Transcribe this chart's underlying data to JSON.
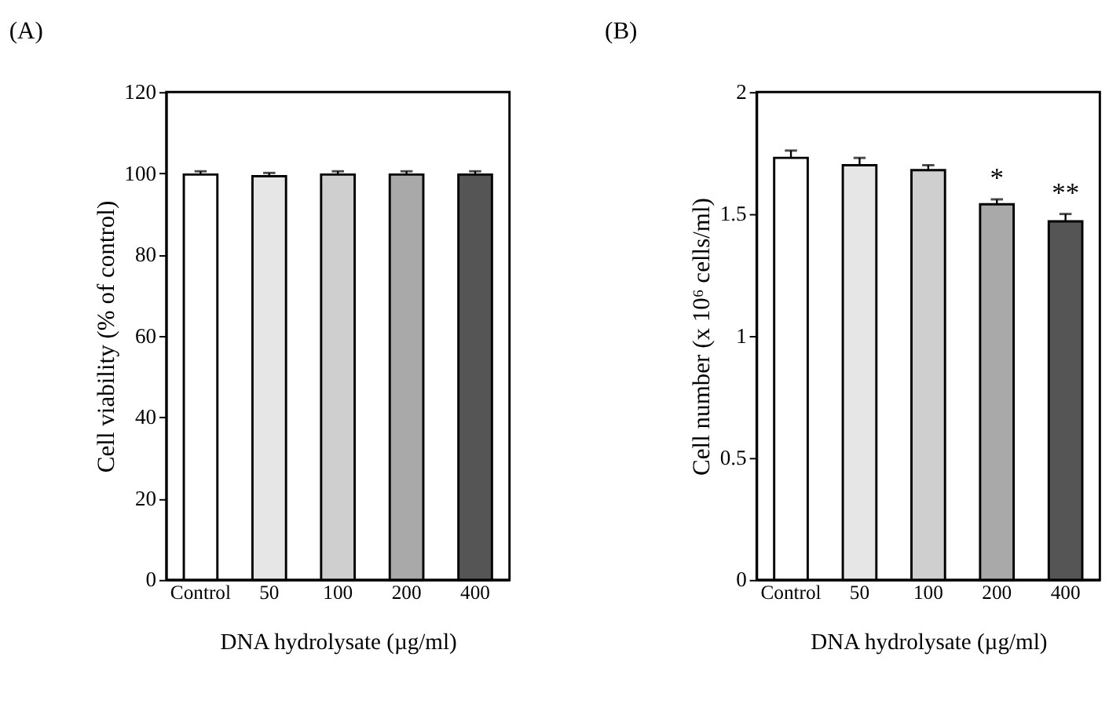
{
  "chart_data": [
    {
      "type": "bar",
      "title": "(A)",
      "xlabel": "DNA hydrolysate (µg/ml)",
      "ylabel": "Cell viability (% of control)",
      "categories": [
        "Control",
        "50",
        "100",
        "200",
        "400"
      ],
      "values": [
        99.7,
        99.3,
        99.7,
        99.7,
        99.7
      ],
      "errors": [
        0.8,
        0.8,
        0.8,
        0.8,
        0.8
      ],
      "colors": [
        "#ffffff",
        "#e6e6e6",
        "#cfcfcf",
        "#a9a9a9",
        "#555555"
      ],
      "ylim": [
        0,
        120
      ],
      "yticks": [
        0,
        20,
        40,
        60,
        80,
        100,
        120
      ],
      "grid": false
    },
    {
      "type": "bar",
      "title": "(B)",
      "xlabel": "DNA hydrolysate (µg/ml)",
      "ylabel": "Cell number (x 10⁶ cells/ml)",
      "categories": [
        "Control",
        "50",
        "100",
        "200",
        "400"
      ],
      "values": [
        1.73,
        1.7,
        1.68,
        1.54,
        1.47
      ],
      "errors": [
        0.03,
        0.03,
        0.02,
        0.02,
        0.03
      ],
      "colors": [
        "#ffffff",
        "#e6e6e6",
        "#cfcfcf",
        "#a9a9a9",
        "#555555"
      ],
      "ylim": [
        0,
        2
      ],
      "yticks": [
        0,
        0.5,
        1,
        1.5,
        2
      ],
      "grid": false,
      "annotations": [
        {
          "text": "*",
          "x": "200",
          "y": 1.56
        },
        {
          "text": "**",
          "x": "400",
          "y": 1.5
        }
      ]
    }
  ]
}
